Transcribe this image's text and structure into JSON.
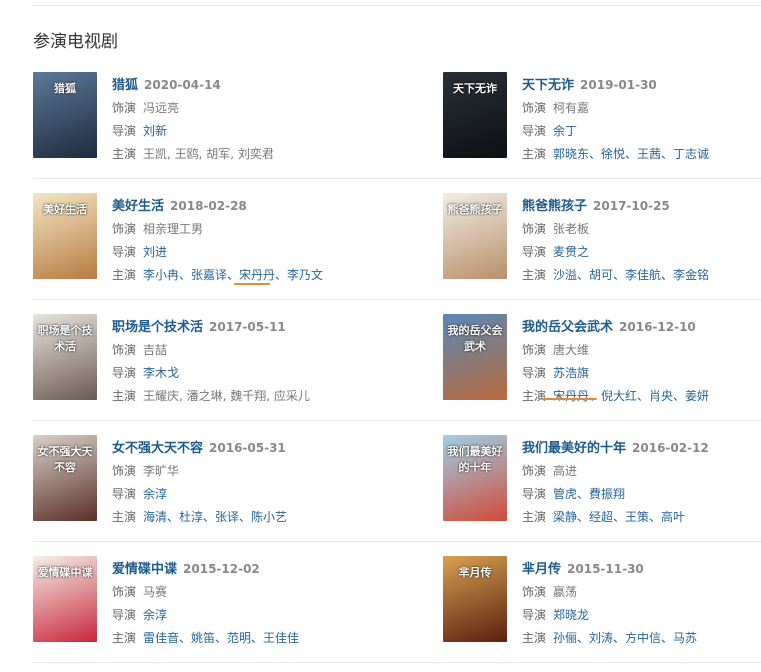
{
  "section_title": "参演电视剧",
  "labels": {
    "role": "饰演",
    "director": "导演",
    "cast": "主演"
  },
  "accent": "#1e5a8a",
  "annotation_color": "#e08a3a",
  "dramas": [
    {
      "title": "猎狐",
      "date": "2020-04-14",
      "role": "冯远亮",
      "director": "刘新",
      "cast": "王凯, 王鸥, 胡军, 刘奕君",
      "poster": [
        "#5b7a9a",
        "#1d2c3c"
      ]
    },
    {
      "title": "天下无诈",
      "date": "2019-01-30",
      "role": "柯有嘉",
      "director": "余丁",
      "cast": "郭晓东、徐悦、王茜、丁志诚",
      "poster": [
        "#2a2f38",
        "#0d0f14"
      ]
    },
    {
      "title": "美好生活",
      "date": "2018-02-28",
      "role": "相亲理工男",
      "director": "刘进",
      "cast": "李小冉、张嘉译、宋丹丹、李乃文",
      "poster": [
        "#f3e6c4",
        "#b77b42"
      ]
    },
    {
      "title": "熊爸熊孩子",
      "date": "2017-10-25",
      "role": "张老板",
      "director": "麦贯之",
      "cast": "沙溢、胡可、李佳航、李金铭",
      "poster": [
        "#f1ede4",
        "#b88f6a"
      ]
    },
    {
      "title": "职场是个技术活",
      "date": "2017-05-11",
      "role": "吉喆",
      "director": "李木戈",
      "cast": "王耀庆, 潘之琳, 魏千翔, 应采儿",
      "poster": [
        "#e9e4de",
        "#6a5a52"
      ]
    },
    {
      "title": "我的岳父会武术",
      "date": "2016-12-10",
      "role": "唐大维",
      "director": "苏浩旗",
      "cast": "宋丹丹、倪大红、肖央、姜妍",
      "poster": [
        "#5a88b8",
        "#b86a3a"
      ]
    },
    {
      "title": "女不强大天不容",
      "date": "2016-05-31",
      "role": "李旷华",
      "director": "余淳",
      "cast": "海清、杜淳、张译、陈小艺",
      "poster": [
        "#d8d0c8",
        "#5a3028"
      ]
    },
    {
      "title": "我们最美好的十年",
      "date": "2016-02-12",
      "role": "高进",
      "director": "管虎、費振翔",
      "cast": "梁静、经超、王策、高叶",
      "poster": [
        "#9fd0e8",
        "#d04a3a"
      ]
    },
    {
      "title": "爱情碟中谍",
      "date": "2015-12-02",
      "role": "马赛",
      "director": "余淳",
      "cast": "雷佳音、姚笛、范明、王佳佳",
      "poster": [
        "#f4f0ea",
        "#c8283a"
      ]
    },
    {
      "title": "芈月传",
      "date": "2015-11-30",
      "role": "嬴荡",
      "director": "郑晓龙",
      "cast": "孙俪、刘涛、方中信、马苏",
      "poster": [
        "#d8a050",
        "#5a2010"
      ]
    }
  ]
}
